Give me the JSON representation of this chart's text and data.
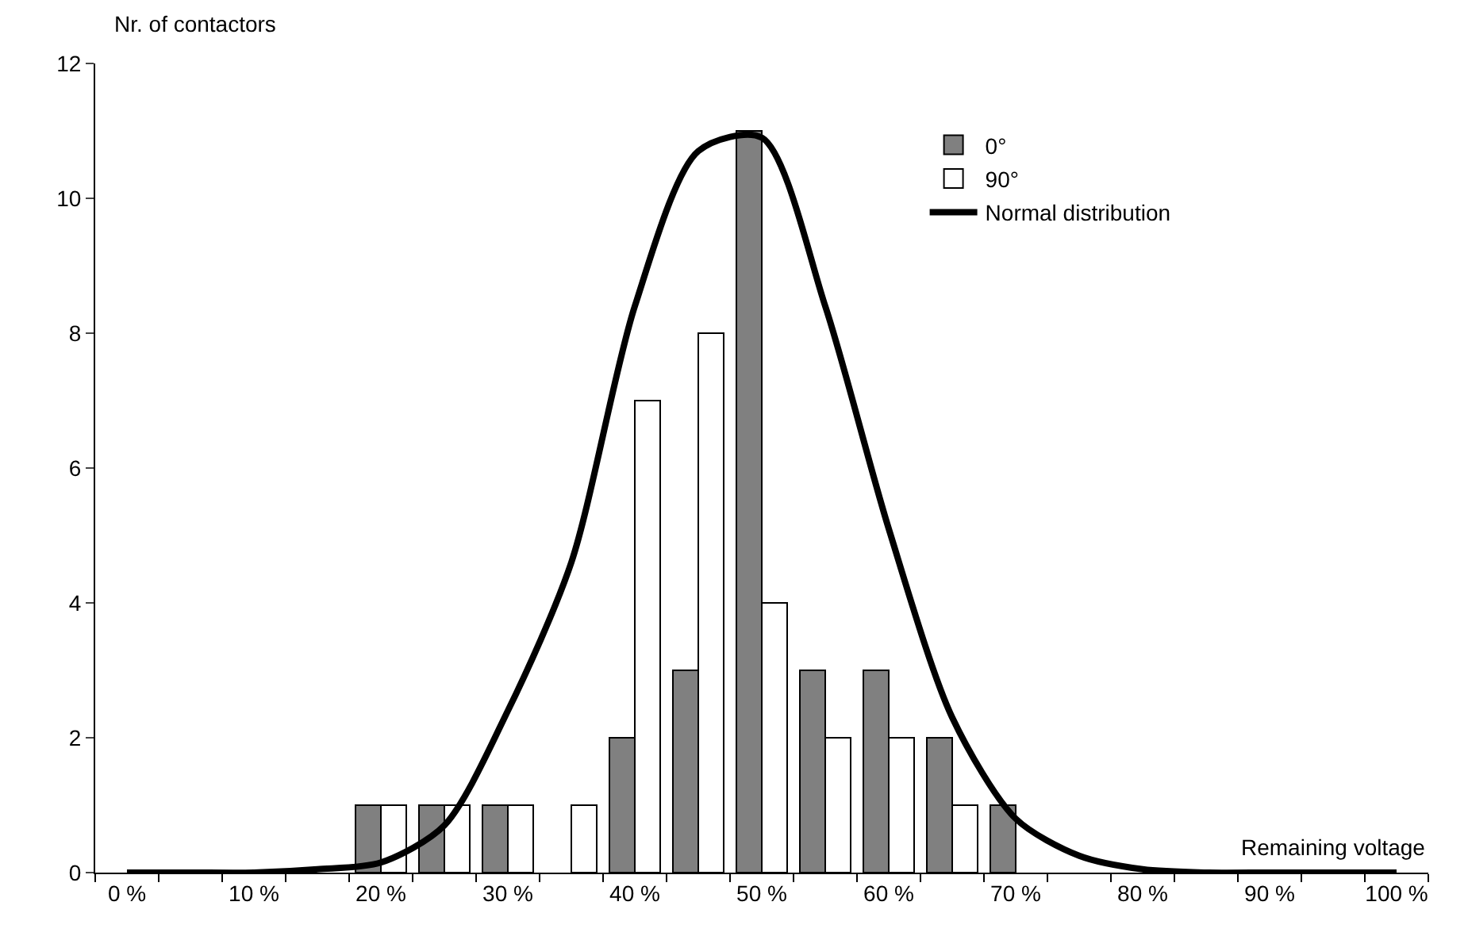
{
  "chart_data": {
    "type": "bar",
    "xlabel": "Remaining voltage",
    "ylabel": "Nr. of contactors",
    "categories": [
      "0 %",
      null,
      "10 %",
      null,
      "20 %",
      null,
      "30 %",
      null,
      "40 %",
      null,
      "50 %",
      null,
      "60 %",
      null,
      "70 %",
      null,
      "80 %",
      null,
      "90 %",
      null,
      "100 %"
    ],
    "series": [
      {
        "name": "0°",
        "color": "#808080",
        "values": [
          0,
          0,
          0,
          0,
          1,
          1,
          1,
          0,
          2,
          3,
          11,
          3,
          3,
          2,
          1,
          0,
          0,
          0,
          0,
          0,
          0
        ]
      },
      {
        "name": "90°",
        "color": "#ffffff",
        "values": [
          0,
          0,
          0,
          0,
          1,
          1,
          1,
          1,
          7,
          8,
          4,
          2,
          2,
          1,
          0,
          0,
          0,
          0,
          0,
          0,
          0
        ]
      },
      {
        "name": "Normal distribution",
        "type": "line",
        "color": "#000000",
        "values": [
          0,
          0,
          0,
          0.05,
          0.15,
          0.7,
          2.4,
          4.6,
          8.4,
          10.7,
          10.9,
          8.4,
          5.1,
          2.3,
          0.8,
          0.25,
          0.05,
          0,
          0,
          0,
          0
        ]
      }
    ],
    "ylim": [
      0,
      12
    ],
    "yticks": [
      0,
      2,
      4,
      6,
      8,
      10,
      12
    ],
    "grid": false,
    "legend": "top right",
    "marker": "none",
    "line_style": "solid"
  }
}
